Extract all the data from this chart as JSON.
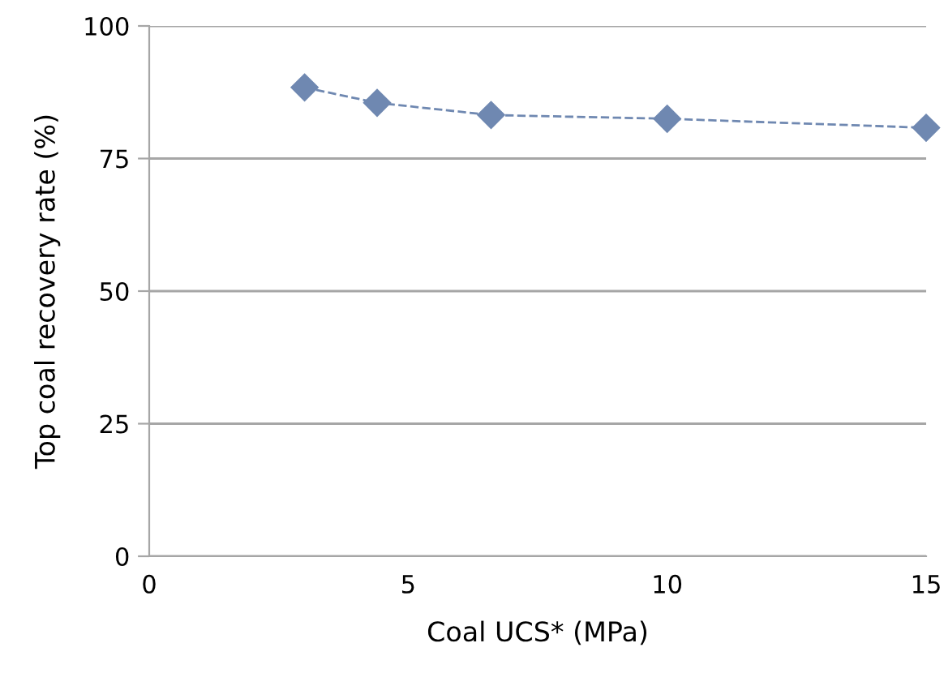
{
  "chart_data": {
    "type": "line",
    "xlabel": "Coal UCS* (MPa)",
    "ylabel": "Top coal recovery rate (%)",
    "x": [
      3,
      4.4,
      6.6,
      10,
      15
    ],
    "series": [
      {
        "color": "#6f88b1",
        "values": [
          88.4,
          85.5,
          83.2,
          82.5,
          80.8
        ]
      }
    ],
    "xlim": [
      0,
      15
    ],
    "xticks": [
      0,
      5,
      10,
      15
    ],
    "ylim": [
      0,
      100
    ],
    "yticks": [
      0,
      25,
      50,
      75,
      100
    ],
    "grid": "y",
    "marker": "diamond",
    "line_style": "dashed",
    "legend": false
  }
}
